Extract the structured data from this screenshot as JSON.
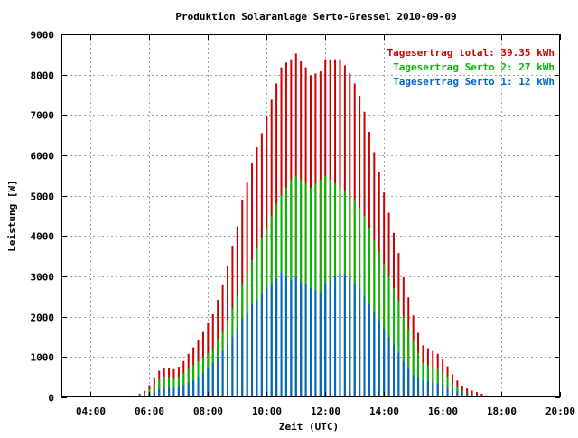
{
  "chart_data": {
    "type": "bar",
    "title": "Produktion Solaranlage Serto-Gressel 2010-09-09",
    "xlabel": "Zeit (UTC)",
    "ylabel": "Leistung [W]",
    "x_ticks": [
      "04:00",
      "06:00",
      "08:00",
      "10:00",
      "12:00",
      "14:00",
      "16:00",
      "18:00",
      "20:00"
    ],
    "x_tick_hours": [
      4,
      6,
      8,
      10,
      12,
      14,
      16,
      18,
      20
    ],
    "xlim_hours": [
      3,
      20
    ],
    "ylim": [
      0,
      9000
    ],
    "y_ticks": [
      0,
      1000,
      2000,
      3000,
      4000,
      5000,
      6000,
      7000,
      8000,
      9000
    ],
    "grid": true,
    "legend_position": "top-right",
    "legend": [
      {
        "text": "Tagesertrag total: 39.35 kWh",
        "color": "#cc0000"
      },
      {
        "text": "Tagesertrag Serto 2: 27 kWh",
        "color": "#00bb00"
      },
      {
        "text": "Tagesertrag Serto 1: 12 kWh",
        "color": "#0066cc"
      }
    ],
    "colors": {
      "total": "#cc0000",
      "serto2": "#00bb00",
      "serto1": "#0066cc"
    },
    "x": [
      "05:00",
      "05:10",
      "05:20",
      "05:30",
      "05:40",
      "05:50",
      "06:00",
      "06:10",
      "06:20",
      "06:30",
      "06:40",
      "06:50",
      "07:00",
      "07:10",
      "07:20",
      "07:30",
      "07:40",
      "07:50",
      "08:00",
      "08:10",
      "08:20",
      "08:30",
      "08:40",
      "08:50",
      "09:00",
      "09:10",
      "09:20",
      "09:30",
      "09:40",
      "09:50",
      "10:00",
      "10:10",
      "10:20",
      "10:30",
      "10:40",
      "10:50",
      "11:00",
      "11:10",
      "11:20",
      "11:30",
      "11:40",
      "11:50",
      "12:00",
      "12:10",
      "12:20",
      "12:30",
      "12:40",
      "12:50",
      "13:00",
      "13:10",
      "13:20",
      "13:30",
      "13:40",
      "13:50",
      "14:00",
      "14:10",
      "14:20",
      "14:30",
      "14:40",
      "14:50",
      "15:00",
      "15:10",
      "15:20",
      "15:30",
      "15:40",
      "15:50",
      "16:00",
      "16:10",
      "16:20",
      "16:30",
      "16:40",
      "16:50",
      "17:00",
      "17:10",
      "17:20",
      "17:30",
      "17:40",
      "17:50"
    ],
    "series": [
      {
        "name": "Serto 1",
        "values": [
          0,
          0,
          10,
          20,
          40,
          60,
          90,
          150,
          200,
          230,
          240,
          230,
          250,
          300,
          360,
          420,
          500,
          600,
          720,
          850,
          1000,
          1150,
          1300,
          1500,
          1700,
          1950,
          2100,
          2300,
          2400,
          2550,
          2700,
          2800,
          2950,
          3100,
          3000,
          2900,
          3000,
          2850,
          2800,
          2700,
          2650,
          2600,
          2800,
          2900,
          3000,
          3100,
          3050,
          2950,
          2800,
          2700,
          2500,
          2300,
          2100,
          1900,
          1700,
          1500,
          1300,
          1100,
          900,
          700,
          550,
          480,
          420,
          400,
          380,
          350,
          320,
          250,
          200,
          150,
          120,
          100,
          80,
          60,
          40,
          20,
          10,
          0
        ]
      },
      {
        "name": "Serto 2",
        "values": [
          0,
          0,
          10,
          20,
          50,
          100,
          200,
          300,
          450,
          500,
          480,
          460,
          500,
          600,
          700,
          800,
          900,
          1000,
          1100,
          1200,
          1400,
          1600,
          1900,
          2200,
          2500,
          2800,
          3100,
          3400,
          3700,
          3950,
          4200,
          4500,
          4800,
          5000,
          5200,
          5400,
          5500,
          5400,
          5300,
          5200,
          5300,
          5400,
          5500,
          5400,
          5300,
          5200,
          5100,
          5000,
          4900,
          4700,
          4500,
          4200,
          3900,
          3600,
          3300,
          3000,
          2700,
          2400,
          2000,
          1700,
          1400,
          1100,
          850,
          800,
          750,
          700,
          600,
          500,
          350,
          250,
          150,
          100,
          80,
          60,
          40,
          20,
          10,
          0
        ]
      },
      {
        "name": "total",
        "values": [
          0,
          0,
          20,
          40,
          90,
          160,
          300,
          480,
          660,
          740,
          720,
          700,
          760,
          900,
          1080,
          1240,
          1420,
          1620,
          1840,
          2060,
          2420,
          2780,
          3260,
          3760,
          4240,
          4880,
          5320,
          5800,
          6200,
          6550,
          6980,
          7380,
          7780,
          8180,
          8300,
          8380,
          8520,
          8330,
          8180,
          7980,
          8030,
          8080,
          8380,
          8380,
          8380,
          8380,
          8230,
          8030,
          7780,
          7480,
          7080,
          6580,
          6080,
          5580,
          5080,
          4580,
          4080,
          3580,
          2980,
          2480,
          2030,
          1600,
          1290,
          1220,
          1150,
          1080,
          940,
          770,
          570,
          420,
          290,
          220,
          170,
          130,
          90,
          50,
          30,
          0
        ]
      }
    ]
  }
}
